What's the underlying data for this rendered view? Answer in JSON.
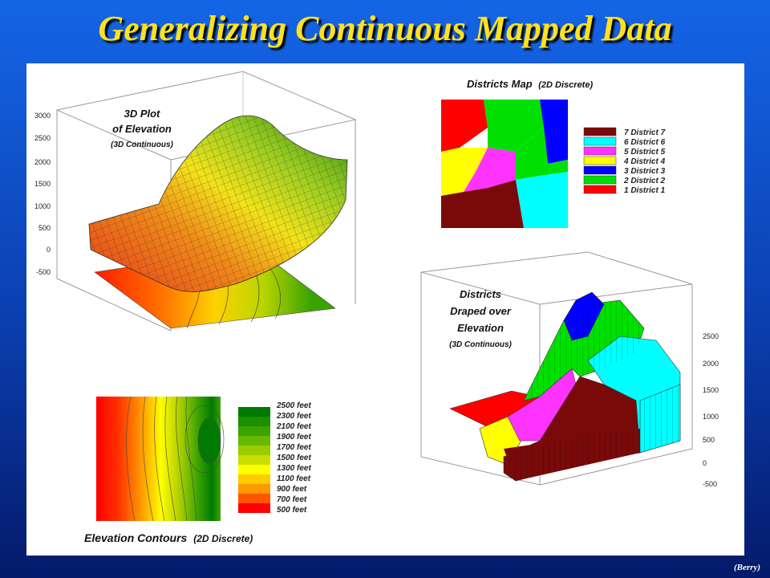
{
  "title": "Generalizing Continuous Mapped Data",
  "credit": "(Berry)",
  "plot3d": {
    "label_line1": "3D Plot",
    "label_line2": "of Elevation",
    "label_sub": "(3D Continuous)",
    "axis_ticks": [
      "3000",
      "2500",
      "2000",
      "1500",
      "1000",
      "500",
      "0",
      "-500"
    ]
  },
  "districts_map": {
    "label_main": "Districts Map",
    "label_sub": "(2D Discrete)",
    "legend": [
      {
        "label": "7 District 7",
        "color": "#7a0a0a"
      },
      {
        "label": "6 District 6",
        "color": "#00ffff"
      },
      {
        "label": "5 District 5",
        "color": "#ff33ff"
      },
      {
        "label": "4 District 4",
        "color": "#ffff00"
      },
      {
        "label": "3 District 3",
        "color": "#0000ff"
      },
      {
        "label": "2 District 2",
        "color": "#00e000"
      },
      {
        "label": "1 District 1",
        "color": "#ff0000"
      }
    ]
  },
  "draped": {
    "label_line1": "Districts",
    "label_line2": "Draped over",
    "label_line3": "Elevation",
    "label_sub": "(3D Continuous)",
    "axis_ticks": [
      "2500",
      "2000",
      "1500",
      "1000",
      "500",
      "0",
      "-500"
    ]
  },
  "contours": {
    "label_main": "Elevation Contours",
    "label_sub": "(2D Discrete)",
    "legend": [
      {
        "label": "2500 feet",
        "color": "#007a00"
      },
      {
        "label": "2300 feet",
        "color": "#1a8f00"
      },
      {
        "label": "2100 feet",
        "color": "#3aa300"
      },
      {
        "label": "1900 feet",
        "color": "#66b800"
      },
      {
        "label": "1700 feet",
        "color": "#9acc00"
      },
      {
        "label": "1500 feet",
        "color": "#ccdd00"
      },
      {
        "label": "1300 feet",
        "color": "#ffff00"
      },
      {
        "label": "1100 feet",
        "color": "#ffcc00"
      },
      {
        "label": "900 feet",
        "color": "#ff9900"
      },
      {
        "label": "700 feet",
        "color": "#ff5500"
      },
      {
        "label": "500 feet",
        "color": "#ff0000"
      }
    ]
  }
}
